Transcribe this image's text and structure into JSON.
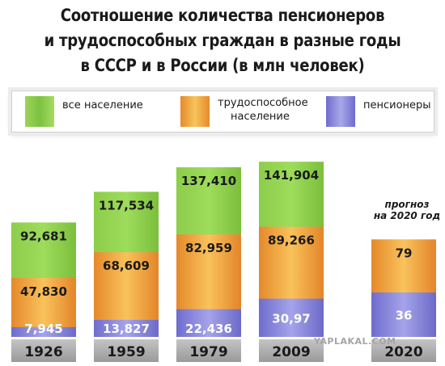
{
  "title_lines": [
    "Соотношение количества пенсионеров",
    "и трудоспособных граждан в разные годы",
    "в СССР и в России (в млн человек)"
  ],
  "legend": {
    "total": "все население",
    "working_line1": "трудоспособное",
    "working_line2": "население",
    "pensioners": "пенсионеры"
  },
  "colors": {
    "total": "#7cc242",
    "working": "#f0a840",
    "pensioners": "#8c8ade",
    "year_bar": "#a9a9a9"
  },
  "forecast_label_line1": "прогноз",
  "forecast_label_line2": "на 2020 год",
  "watermark": "YAPLAKAL.COM",
  "chart_data": {
    "type": "bar",
    "title": "Соотношение количества пенсионеров и трудоспособных граждан в разные годы в СССР и в России (в млн человек)",
    "categories": [
      "1926",
      "1959",
      "1979",
      "2009",
      "2020"
    ],
    "series": [
      {
        "name": "все население",
        "values": [
          92.681,
          117.534,
          137.41,
          141.904,
          null
        ],
        "labels": [
          "92,681",
          "117,534",
          "137,410",
          "141,904",
          ""
        ]
      },
      {
        "name": "трудоспособное население",
        "values": [
          47.83,
          68.609,
          82.959,
          89.266,
          79
        ],
        "labels": [
          "47,830",
          "68,609",
          "82,959",
          "89,266",
          "79"
        ]
      },
      {
        "name": "пенсионеры",
        "values": [
          7.945,
          13.827,
          22.436,
          30.97,
          36
        ],
        "labels": [
          "7,945",
          "13,827",
          "22,436",
          "30,97",
          "36"
        ]
      }
    ],
    "legend_position": "top",
    "grid": false
  }
}
